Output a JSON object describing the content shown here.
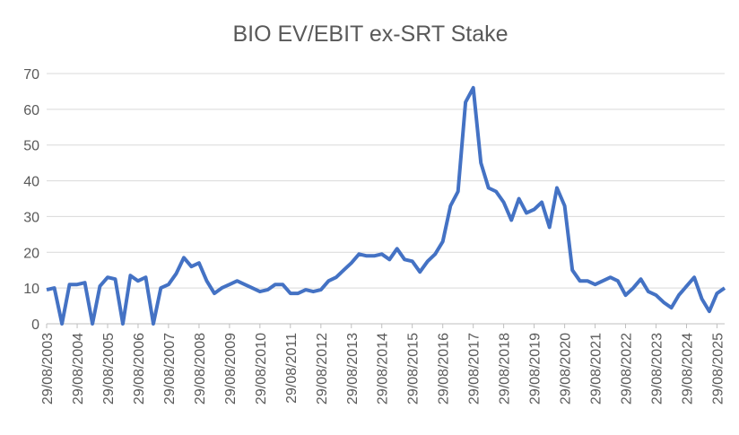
{
  "chart_data": {
    "type": "line",
    "title": "BIO EV/EBIT ex-SRT Stake",
    "x": [
      "29/08/2003",
      "29/11/2003",
      "29/02/2004",
      "29/05/2004",
      "29/08/2004",
      "29/11/2004",
      "28/02/2005",
      "29/05/2005",
      "29/08/2005",
      "29/11/2005",
      "28/02/2006",
      "29/05/2006",
      "29/08/2006",
      "29/11/2006",
      "28/02/2007",
      "29/05/2007",
      "29/08/2007",
      "29/11/2007",
      "29/02/2008",
      "29/05/2008",
      "29/08/2008",
      "29/11/2008",
      "28/02/2009",
      "29/05/2009",
      "29/08/2009",
      "29/11/2009",
      "28/02/2010",
      "29/05/2010",
      "29/08/2010",
      "29/11/2010",
      "28/02/2011",
      "29/05/2011",
      "29/08/2011",
      "29/11/2011",
      "29/02/2012",
      "29/05/2012",
      "29/08/2012",
      "29/11/2012",
      "28/02/2013",
      "29/05/2013",
      "29/08/2013",
      "29/11/2013",
      "28/02/2014",
      "29/05/2014",
      "29/08/2014",
      "29/11/2014",
      "28/02/2015",
      "29/05/2015",
      "29/08/2015",
      "29/11/2015",
      "29/02/2016",
      "29/05/2016",
      "29/08/2016",
      "29/11/2016",
      "28/02/2017",
      "29/05/2017",
      "29/08/2017",
      "29/11/2017",
      "28/02/2018",
      "29/05/2018",
      "29/08/2018",
      "29/11/2018",
      "28/02/2019",
      "29/05/2019",
      "29/08/2019",
      "29/11/2019",
      "29/02/2020",
      "29/05/2020",
      "29/08/2020",
      "29/11/2020",
      "28/02/2021",
      "29/05/2021",
      "29/08/2021",
      "29/11/2021",
      "28/02/2022",
      "29/05/2022",
      "29/08/2022",
      "29/11/2022",
      "28/02/2023",
      "29/05/2023",
      "29/08/2023",
      "29/11/2023",
      "29/02/2024",
      "29/05/2024",
      "29/08/2024",
      "29/11/2024",
      "28/02/2025",
      "29/05/2025",
      "29/08/2025",
      "29/11/2025"
    ],
    "series": [
      {
        "name": "BIO EV/EBIT ex-SRT Stake",
        "color": "#4472c4",
        "values": [
          9.5,
          10,
          0,
          11,
          11,
          11.5,
          0,
          10.5,
          13,
          12.5,
          0,
          13.5,
          12,
          13,
          0,
          10,
          11,
          14,
          18.5,
          16,
          17,
          12,
          8.5,
          10,
          11,
          12,
          11,
          10,
          9,
          9.5,
          11,
          11,
          8.5,
          8.5,
          9.5,
          9,
          9.5,
          12,
          13,
          15,
          17,
          19.5,
          19,
          19,
          19.5,
          18,
          21,
          18,
          17.5,
          14.5,
          17.5,
          19.5,
          23,
          33,
          37,
          62,
          66,
          45,
          38,
          37,
          34,
          29,
          35,
          31,
          32,
          34,
          27,
          38,
          33,
          15,
          12,
          12,
          11,
          12,
          13,
          12,
          8,
          10,
          12.5,
          9,
          8,
          6,
          4.5,
          8,
          10.5,
          13,
          7,
          3.5,
          8.5,
          10
        ]
      }
    ],
    "xlim": [
      "29/08/2003",
      "29/11/2025"
    ],
    "xticks": [
      "29/08/2003",
      "29/08/2004",
      "29/08/2005",
      "29/08/2006",
      "29/08/2007",
      "29/08/2008",
      "29/08/2009",
      "29/08/2010",
      "29/08/2011",
      "29/08/2012",
      "29/08/2013",
      "29/08/2014",
      "29/08/2015",
      "29/08/2016",
      "29/08/2017",
      "29/08/2018",
      "29/08/2019",
      "29/08/2020",
      "29/08/2021",
      "29/08/2022",
      "29/08/2023",
      "29/08/2024",
      "29/08/2025"
    ],
    "ylim": [
      0,
      70
    ],
    "yticks": [
      0,
      10,
      20,
      30,
      40,
      50,
      60,
      70
    ],
    "grid": true
  }
}
